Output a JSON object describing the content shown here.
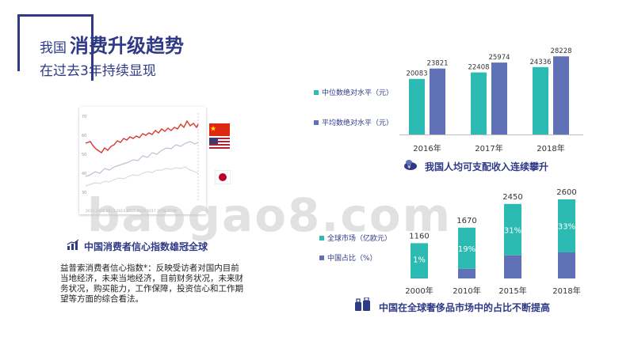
{
  "header": {
    "title_prefix": "我国",
    "title_highlight": "消费升级趋势",
    "subtitle": "在过去3年持续显现"
  },
  "left_panel": {
    "thumbnail_axis_labels": [
      "70",
      "60",
      "50",
      "40",
      "30"
    ],
    "thumbnail_year_labels": "2011 2012 2013 2014 2015 2016 2017 2018 2019",
    "section_title": "中国消费者信心指数雄冠全球",
    "description": "益普索消费者信心指数*：反映受访者对国内目前当地经济，未来当地经济，目前财务状况，未来财务状况，购买能力，工作保障，投资信心和工作期望等方面的综合看法。"
  },
  "colors": {
    "teal": "#2bbbb3",
    "indigo": "#6171b8",
    "navy": "#2e3a87"
  },
  "icons": [
    "bar-chart-icon",
    "money-bag-icon",
    "luggage-icon",
    "china-flag-icon",
    "usa-flag-icon",
    "japan-flag-icon"
  ],
  "watermark": "baogao8.com",
  "chart_data": [
    {
      "type": "bar",
      "title": "我国人均可支配收入连续攀升",
      "categories": [
        "2016年",
        "2017年",
        "2018年"
      ],
      "series": [
        {
          "name": "中位数绝对水平（元）",
          "values": [
            20083,
            22408,
            24336
          ]
        },
        {
          "name": "平均数绝对水平（元）",
          "values": [
            23821,
            25974,
            28228
          ]
        }
      ],
      "data_labels": {
        "median": [
          "20083",
          "22408",
          "24336"
        ],
        "mean": [
          "23821",
          "25974",
          "28228"
        ]
      }
    },
    {
      "type": "bar",
      "title": "中国在全球奢侈品市场中的占比不断提高",
      "categories": [
        "2000年",
        "2010年",
        "2015年",
        "2018年"
      ],
      "series": [
        {
          "name": "全球市场（亿欧元）",
          "values": [
            1160,
            1670,
            2450,
            2600
          ]
        },
        {
          "name": "中国占比（%）",
          "values": [
            1,
            19,
            31,
            33
          ]
        }
      ],
      "data_labels": {
        "market": [
          "1160",
          "1670",
          "2450",
          "2600"
        ],
        "share": [
          "1%",
          "19%",
          "31%",
          "33%"
        ]
      }
    }
  ]
}
